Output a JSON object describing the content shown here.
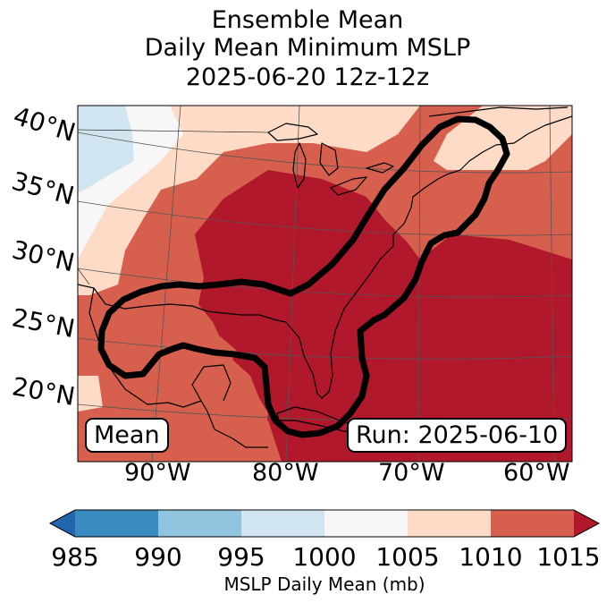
{
  "title": {
    "line1": "Ensemble Mean",
    "line2": "Daily Mean Minimum MSLP",
    "line3": "2025-06-20 12z-12z"
  },
  "map": {
    "region": "Eastern United States, Gulf of Mexico and western Atlantic",
    "latitude_labels": [
      "40°N",
      "35°N",
      "30°N",
      "25°N",
      "20°N"
    ],
    "longitude_labels": [
      "90°W",
      "80°W",
      "70°W",
      "60°W"
    ],
    "fields": [
      {
        "name": "mslp-985-990",
        "color": "#3a8cc0"
      },
      {
        "name": "mslp-990-995",
        "color": "#91c4de"
      },
      {
        "name": "mslp-995-1000",
        "color": "#d1e5f0"
      },
      {
        "name": "mslp-1000-1005",
        "color": "#f7f7f7"
      },
      {
        "name": "mslp-1005-1010",
        "color": "#fddbc7"
      },
      {
        "name": "mslp-1010-1015",
        "color": "#d6604d"
      },
      {
        "name": "mslp-above-1015",
        "color": "#b2182b"
      }
    ],
    "mean_label": "Mean",
    "run_label": "Run: 2025-06-10"
  },
  "colorbar": {
    "ticks": [
      "985",
      "990",
      "995",
      "1000",
      "1005",
      "1010",
      "1015"
    ],
    "colors": [
      "#2166ac",
      "#3a8cc0",
      "#91c4de",
      "#d1e5f0",
      "#f7f7f7",
      "#fddbc7",
      "#d6604d",
      "#b2182b"
    ],
    "label": "MSLP Daily Mean (mb)"
  }
}
